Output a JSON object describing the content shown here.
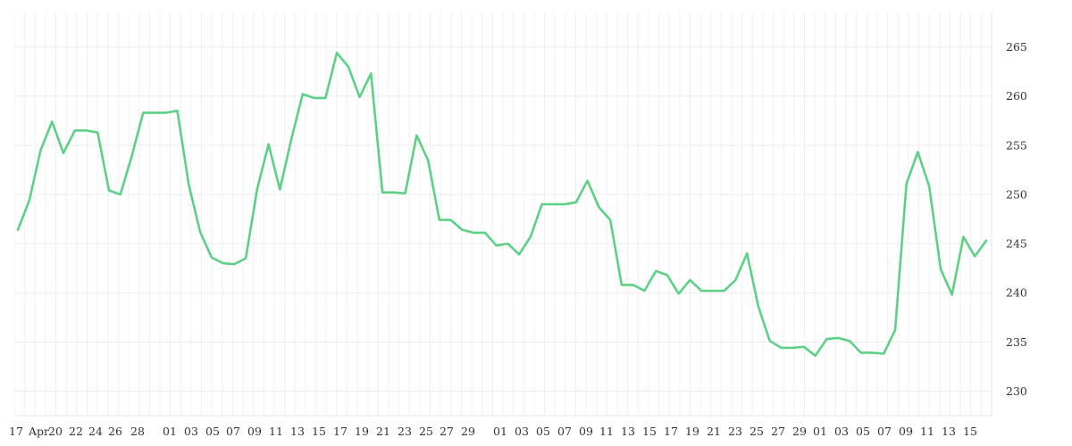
{
  "chart_data": {
    "type": "line",
    "title": "",
    "xlabel": "",
    "ylabel": "",
    "ylim": [
      227.5,
      268.5
    ],
    "y_ticks": [
      230,
      235,
      240,
      245,
      250,
      255,
      260,
      265
    ],
    "y_axis_position": "right",
    "grid": true,
    "line_color": "#5cd185",
    "x_tick_labels": [
      "17",
      "Apr",
      "20",
      "22",
      "24",
      "26",
      "28",
      "01",
      "03",
      "05",
      "07",
      "09",
      "11",
      "13",
      "15",
      "17",
      "19",
      "21",
      "23",
      "25",
      "27",
      "29",
      "01",
      "03",
      "05",
      "07",
      "09",
      "11",
      "13",
      "15",
      "17",
      "19",
      "21",
      "23",
      "25",
      "27",
      "29",
      "01",
      "03",
      "05",
      "07",
      "09",
      "11",
      "13",
      "15"
    ],
    "series": [
      {
        "values": [
          246.4,
          249.4,
          254.5,
          257.4,
          254.2,
          256.5,
          256.5,
          256.3,
          250.4,
          250.0,
          253.9,
          258.3,
          258.3,
          258.3,
          258.5,
          251.0,
          246.2,
          243.6,
          243.0,
          242.9,
          243.5,
          250.5,
          255.1,
          250.5,
          255.6,
          260.2,
          259.8,
          259.8,
          264.4,
          263.0,
          259.9,
          262.3,
          250.2,
          250.2,
          250.1,
          256.0,
          253.5,
          247.4,
          247.4,
          246.4,
          246.1,
          246.1,
          244.8,
          245.0,
          243.9,
          245.7,
          249.0,
          249.0,
          249.0,
          249.2,
          251.4,
          248.7,
          247.4,
          240.8,
          240.8,
          240.2,
          242.2,
          241.8,
          239.9,
          241.3,
          240.2,
          240.2,
          240.2,
          241.3,
          244.0,
          238.6,
          235.1,
          234.4,
          234.4,
          234.5,
          233.6,
          235.3,
          235.4,
          235.1,
          233.9,
          233.9,
          233.8,
          236.2,
          251.1,
          254.3,
          250.8,
          242.4,
          239.8,
          245.7,
          243.7,
          245.3
        ]
      }
    ]
  }
}
